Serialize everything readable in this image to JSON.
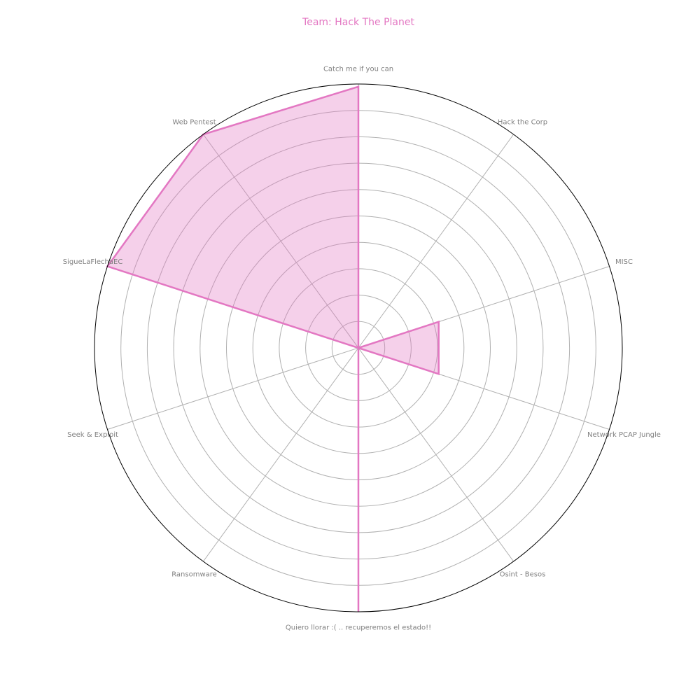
{
  "chart_data": {
    "type": "radar",
    "title": "Team: Hack The Planet",
    "categories": [
      "Catch me if you can",
      "Hack the Corp",
      "MISC",
      "Network PCAP Jungle",
      "Osint - Besos",
      "Quiero llorar :( .. recuperemos el estado!!",
      "Ransomware",
      "Seek & Exploit",
      "SigueLaFlechaEC",
      "Web Pentest"
    ],
    "series": [
      {
        "values": [
          99,
          0,
          32,
          32,
          0,
          100,
          0,
          0,
          100,
          100
        ]
      }
    ],
    "rlim": [
      0,
      100
    ],
    "rings": 10,
    "grid": true,
    "colors": {
      "series": "#e377c2",
      "title": "#e377c2",
      "label": "#808080",
      "grid": "#b0b0b0",
      "frame": "#000000"
    }
  }
}
